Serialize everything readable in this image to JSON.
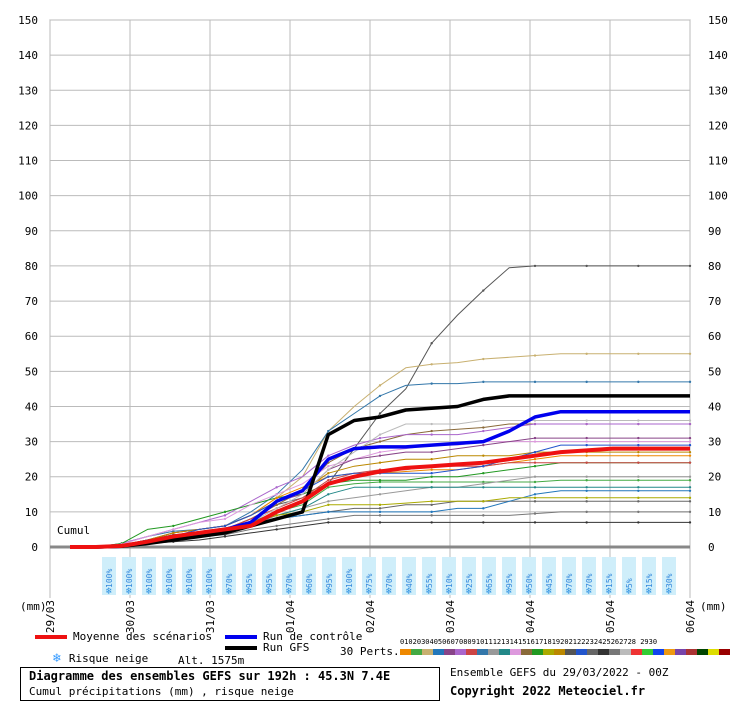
{
  "chart_data": {
    "type": "line",
    "y_ticks": [
      0,
      10,
      20,
      30,
      40,
      50,
      60,
      70,
      80,
      90,
      100,
      110,
      120,
      130,
      140,
      150
    ],
    "ylim": [
      0,
      150
    ],
    "x_tick_labels": [
      "29/03",
      "30/03",
      "31/03",
      "01/04",
      "02/04",
      "03/04",
      "04/04",
      "05/04",
      "06/04"
    ],
    "units_left": "(mm)",
    "units_right": "(mm)",
    "cumul_label": "Cumul",
    "snow_risk": [
      "100%",
      "100%",
      "100%",
      "100%",
      "100%",
      "100%",
      "70%",
      "95%",
      "95%",
      "70%",
      "60%",
      "95%",
      "100%",
      "75%",
      "70%",
      "40%",
      "55%",
      "10%",
      "25%",
      "65%",
      "95%",
      "50%",
      "45%",
      "70%",
      "70%",
      "15%",
      "5%",
      "15%",
      "30%"
    ],
    "series": [
      {
        "name": "Moyenne des scénarios",
        "color": "#ee1111",
        "width": 4,
        "values": [
          0,
          0,
          0.3,
          1.5,
          3,
          4,
          5,
          6,
          10,
          13,
          18,
          20,
          21.5,
          22.5,
          23,
          23.5,
          24,
          25,
          26,
          27,
          27.5,
          28,
          28,
          28,
          28
        ]
      },
      {
        "name": "Run de contrôle",
        "color": "#0000ee",
        "width": 3.5,
        "values": [
          0,
          0,
          0.2,
          1.5,
          3,
          4,
          5,
          7,
          13,
          16,
          25,
          28,
          28.5,
          28.5,
          29,
          29.5,
          30,
          33,
          37,
          38.5,
          38.5,
          38.5,
          38.5,
          38.5,
          38.5
        ]
      },
      {
        "name": "Run GFS",
        "color": "#000000",
        "width": 3.5,
        "values": [
          0,
          0,
          0.2,
          1,
          2,
          3,
          4,
          6,
          8,
          10,
          32,
          36,
          37,
          39,
          39.5,
          40,
          42,
          43,
          43,
          43,
          43,
          43,
          43,
          43,
          43
        ]
      },
      {
        "color": "#555555",
        "width": 1,
        "values": [
          0,
          0,
          0.5,
          2,
          3.5,
          4,
          5,
          8,
          12,
          14,
          18,
          28,
          38,
          45,
          58,
          66,
          73,
          79.5,
          80,
          80,
          80,
          80,
          80,
          80,
          80
        ]
      },
      {
        "color": "#c8b070",
        "width": 1,
        "values": [
          0,
          0,
          0.5,
          2,
          3,
          5,
          6,
          9,
          14,
          20,
          33,
          40,
          46,
          51,
          52,
          52.5,
          53.5,
          54,
          54.5,
          55,
          55,
          55,
          55,
          55,
          55
        ]
      },
      {
        "color": "#3377aa",
        "width": 1,
        "values": [
          0,
          0,
          1,
          3,
          4.5,
          5,
          6,
          10,
          15,
          22,
          33,
          38,
          43,
          46,
          46.5,
          46.5,
          47,
          47,
          47,
          47,
          47,
          47,
          47,
          47,
          47
        ]
      },
      {
        "color": "#8a6a3a",
        "width": 1,
        "values": [
          0,
          0,
          0.5,
          2,
          3,
          4,
          5,
          8,
          12,
          16,
          24,
          28,
          30,
          32,
          33,
          33.5,
          34,
          35,
          35,
          35,
          35,
          35,
          35,
          35,
          35
        ]
      },
      {
        "color": "#aa66cc",
        "width": 1,
        "values": [
          0,
          0,
          1,
          3,
          5,
          7,
          9,
          13,
          17,
          20,
          26,
          29,
          31,
          32,
          32,
          32,
          33,
          34,
          35,
          35,
          35,
          35,
          35,
          35,
          35
        ]
      },
      {
        "color": "#44aa44",
        "width": 1,
        "values": [
          0,
          0,
          0.5,
          2,
          3,
          4,
          5,
          7,
          10,
          12,
          17,
          18,
          18.5,
          18.5,
          18.5,
          18.5,
          18.5,
          18.5,
          18.5,
          19,
          19,
          19,
          19,
          19,
          19
        ]
      },
      {
        "color": "#229922",
        "width": 1,
        "values": [
          0,
          0,
          1,
          5,
          6,
          8,
          10,
          12,
          14,
          15,
          18,
          19,
          19,
          19,
          20,
          20,
          21,
          22,
          23,
          24,
          24,
          24,
          24,
          24,
          24
        ]
      },
      {
        "color": "#ee8800",
        "width": 1,
        "values": [
          0,
          0,
          0.5,
          2,
          4,
          5,
          6,
          9,
          14,
          17,
          20,
          21,
          21,
          21.5,
          22,
          22,
          23,
          24,
          25,
          26,
          26,
          26,
          26,
          26,
          26
        ]
      },
      {
        "color": "#999999",
        "width": 1,
        "values": [
          0,
          0,
          0.3,
          1,
          2,
          3,
          4,
          6,
          9,
          11,
          13,
          14,
          15,
          16,
          17,
          17,
          18,
          19,
          20,
          20,
          20,
          20,
          20,
          20,
          20
        ]
      },
      {
        "color": "#666666",
        "width": 1,
        "values": [
          0,
          0,
          0.3,
          1,
          2,
          3,
          4,
          6,
          8,
          9,
          10,
          11,
          11,
          12,
          12,
          13,
          13,
          13,
          13,
          13,
          13,
          13,
          13,
          13,
          13
        ]
      },
      {
        "color": "#777777",
        "width": 1,
        "values": [
          0,
          0,
          0.2,
          1,
          2,
          3,
          3.5,
          5,
          6,
          7,
          8,
          9,
          9,
          9,
          9,
          9,
          9,
          9,
          9.5,
          10,
          10,
          10,
          10,
          10,
          10
        ]
      },
      {
        "color": "#333333",
        "width": 1,
        "values": [
          0,
          0,
          0.2,
          1,
          1.5,
          2,
          3,
          4,
          5,
          6,
          7,
          7,
          7,
          7,
          7,
          7,
          7,
          7,
          7,
          7,
          7,
          7,
          7,
          7,
          7
        ]
      },
      {
        "color": "#228888",
        "width": 1,
        "values": [
          0,
          0,
          0.5,
          2,
          3,
          4,
          5,
          7,
          9,
          11,
          15,
          17,
          17,
          17,
          17,
          17,
          17,
          17,
          17,
          17,
          17,
          17,
          17,
          17,
          17
        ]
      },
      {
        "color": "#cc4444",
        "width": 1,
        "values": [
          0,
          0,
          0.5,
          2,
          3,
          4,
          5,
          8,
          11,
          14,
          19,
          21,
          22,
          22,
          23,
          23,
          23,
          24,
          24,
          24,
          24,
          24,
          24,
          24,
          24
        ]
      },
      {
        "color": "#dd99dd",
        "width": 1,
        "values": [
          0,
          0,
          0.8,
          3,
          5,
          7,
          8,
          12,
          15,
          18,
          23,
          25,
          27,
          28,
          29,
          29,
          30,
          30,
          30,
          30,
          30,
          30,
          30,
          30,
          30
        ]
      },
      {
        "color": "#2277bb",
        "width": 1,
        "values": [
          0,
          0,
          0.5,
          1.5,
          2.5,
          3.5,
          4.5,
          6,
          8,
          9,
          10,
          10,
          10,
          10,
          10,
          11,
          11,
          13,
          15,
          16,
          16,
          16,
          16,
          16,
          16
        ]
      },
      {
        "color": "#aaaa00",
        "width": 1,
        "values": [
          0,
          0,
          0.5,
          2,
          3,
          4,
          5,
          7,
          9,
          10,
          12,
          12,
          12,
          12.5,
          13,
          13,
          13,
          14,
          14,
          14,
          14,
          14,
          14,
          14,
          14
        ]
      },
      {
        "color": "#884488",
        "width": 1,
        "values": [
          0,
          0,
          0.5,
          2,
          4,
          5,
          6,
          9,
          13,
          15,
          22,
          25,
          26,
          27,
          27,
          28,
          29,
          30,
          31,
          31,
          31,
          31,
          31,
          31,
          31
        ]
      },
      {
        "color": "#bb8800",
        "width": 1,
        "values": [
          0,
          0,
          0.5,
          2,
          4,
          5,
          6,
          9,
          13,
          16,
          21,
          23,
          24,
          25,
          25,
          26,
          26,
          26,
          27,
          27,
          27,
          27,
          27,
          27,
          27
        ]
      },
      {
        "color": "#2255cc",
        "width": 1,
        "values": [
          0,
          0,
          0.5,
          2,
          3,
          5,
          6,
          9,
          13,
          16,
          20,
          21,
          21,
          21,
          21,
          22,
          23,
          25,
          27,
          29,
          29,
          29,
          29,
          29,
          29
        ]
      },
      {
        "color": "#bbbbbb",
        "width": 1,
        "values": [
          0,
          0,
          0.3,
          1,
          2,
          3,
          4,
          7,
          11,
          15,
          22,
          27,
          32,
          35,
          35,
          35,
          36,
          36,
          36,
          36,
          36,
          36,
          36,
          36,
          36
        ]
      }
    ]
  },
  "legend": {
    "mean": "Moyenne des scénarios",
    "control": "Run de contrôle",
    "gfs": "Run GFS",
    "snow": "Risque neige",
    "alt": "Alt. 1575m",
    "perts_label": "30 Perts.",
    "perts_numbers": "01020304050607080910111213141516171819202122232425262728 2930",
    "perts_colors": [
      "#ee8800",
      "#44aa44",
      "#c8b070",
      "#2277bb",
      "#884488",
      "#aa66cc",
      "#cc4444",
      "#3377aa",
      "#999999",
      "#228888",
      "#dd99dd",
      "#8a6a3a",
      "#229922",
      "#aaaa00",
      "#bb8800",
      "#555555",
      "#2255cc",
      "#666666",
      "#333333",
      "#777777",
      "#bbbbbb",
      "#ee3333",
      "#33cc33",
      "#1144ee",
      "#ee9911",
      "#7744aa",
      "#aa3333",
      "#004400",
      "#dddd00",
      "#990000"
    ]
  },
  "footer": {
    "title": "Diagramme des ensembles GEFS sur 192h : 45.3N 7.4E",
    "subtitle": "Cumul précipitations (mm) , risque neige",
    "ensemble": "Ensemble GEFS du 29/03/2022 - 00Z",
    "copyright": "Copyright 2022 Meteociel.fr"
  }
}
